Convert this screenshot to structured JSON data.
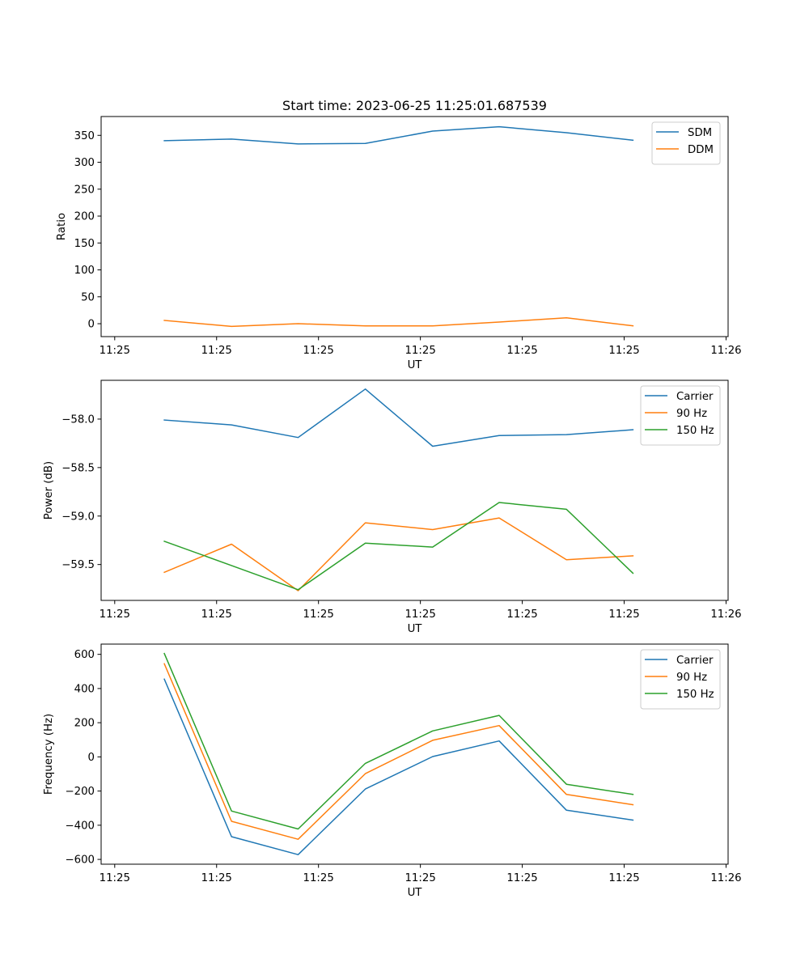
{
  "title": "Start time: 2023-06-25 11:25:01.687539",
  "colors": {
    "blue": "#1f77b4",
    "orange": "#ff7f0e",
    "green": "#2ca02c"
  },
  "chart_data": [
    {
      "type": "line",
      "xlabel": "UT",
      "ylabel": "Ratio",
      "x_tick_labels": [
        "11:25",
        "11:25",
        "11:25",
        "11:25",
        "11:25",
        "11:25",
        "11:26"
      ],
      "x_ticks": [
        1.5,
        3.0,
        4.5,
        6.0,
        7.5,
        9.0,
        10.5
      ],
      "xlim": [
        1.3,
        10.53
      ],
      "x": [
        2.23,
        3.22,
        4.2,
        5.19,
        6.18,
        7.16,
        8.15,
        9.13
      ],
      "ylim": [
        -24,
        385
      ],
      "y_ticks": [
        0,
        50,
        100,
        150,
        200,
        250,
        300,
        350
      ],
      "y_tick_labels": [
        "0",
        "50",
        "100",
        "150",
        "200",
        "250",
        "300",
        "350"
      ],
      "legend_position": "top-right",
      "series": [
        {
          "name": "SDM",
          "color": "#1f77b4",
          "values": [
            340,
            343,
            334,
            335,
            358,
            366,
            355,
            341
          ]
        },
        {
          "name": "DDM",
          "color": "#ff7f0e",
          "values": [
            6,
            -5,
            0,
            -4,
            -4,
            3,
            11,
            -4
          ]
        }
      ]
    },
    {
      "type": "line",
      "xlabel": "UT",
      "ylabel": "Power (dB)",
      "x_tick_labels": [
        "11:25",
        "11:25",
        "11:25",
        "11:25",
        "11:25",
        "11:25",
        "11:26"
      ],
      "x_ticks": [
        1.5,
        3.0,
        4.5,
        6.0,
        7.5,
        9.0,
        10.5
      ],
      "xlim": [
        1.3,
        10.53
      ],
      "x": [
        2.23,
        3.22,
        4.2,
        5.19,
        6.18,
        7.16,
        8.15,
        9.13
      ],
      "ylim": [
        -59.87,
        -57.6
      ],
      "y_ticks": [
        -59.5,
        -59.0,
        -58.5,
        -58.0
      ],
      "y_tick_labels": [
        "−59.5",
        "−59.0",
        "−58.5",
        "−58.0"
      ],
      "legend_position": "top-right",
      "series": [
        {
          "name": "Carrier",
          "color": "#1f77b4",
          "values": [
            -58.01,
            -58.06,
            -58.19,
            -57.69,
            -58.28,
            -58.17,
            -58.16,
            -58.11
          ]
        },
        {
          "name": "90 Hz",
          "color": "#ff7f0e",
          "values": [
            -59.58,
            -59.29,
            -59.77,
            -59.07,
            -59.14,
            -59.02,
            -59.45,
            -59.41
          ]
        },
        {
          "name": "150 Hz",
          "color": "#2ca02c",
          "values": [
            -59.26,
            -59.51,
            -59.76,
            -59.28,
            -59.32,
            -58.86,
            -58.93,
            -59.59
          ]
        }
      ]
    },
    {
      "type": "line",
      "xlabel": "UT",
      "ylabel": "Frequency (Hz)",
      "x_tick_labels": [
        "11:25",
        "11:25",
        "11:25",
        "11:25",
        "11:25",
        "11:25",
        "11:26"
      ],
      "x_ticks": [
        1.5,
        3.0,
        4.5,
        6.0,
        7.5,
        9.0,
        10.5
      ],
      "xlim": [
        1.3,
        10.53
      ],
      "x": [
        2.23,
        3.22,
        4.2,
        5.19,
        6.18,
        7.16,
        8.15,
        9.13
      ],
      "ylim": [
        -628,
        660
      ],
      "y_ticks": [
        -600,
        -400,
        -200,
        0,
        200,
        400,
        600
      ],
      "y_tick_labels": [
        "−600",
        "−400",
        "−200",
        "0",
        "200",
        "400",
        "600"
      ],
      "legend_position": "top-right",
      "series": [
        {
          "name": "Carrier",
          "color": "#1f77b4",
          "values": [
            455,
            -467,
            -572,
            -188,
            2,
            93,
            -312,
            -370
          ]
        },
        {
          "name": "90 Hz",
          "color": "#ff7f0e",
          "values": [
            545,
            -377,
            -482,
            -98,
            97,
            183,
            -220,
            -280
          ]
        },
        {
          "name": "150 Hz",
          "color": "#2ca02c",
          "values": [
            605,
            -317,
            -422,
            -38,
            152,
            243,
            -160,
            -220
          ]
        }
      ]
    }
  ]
}
